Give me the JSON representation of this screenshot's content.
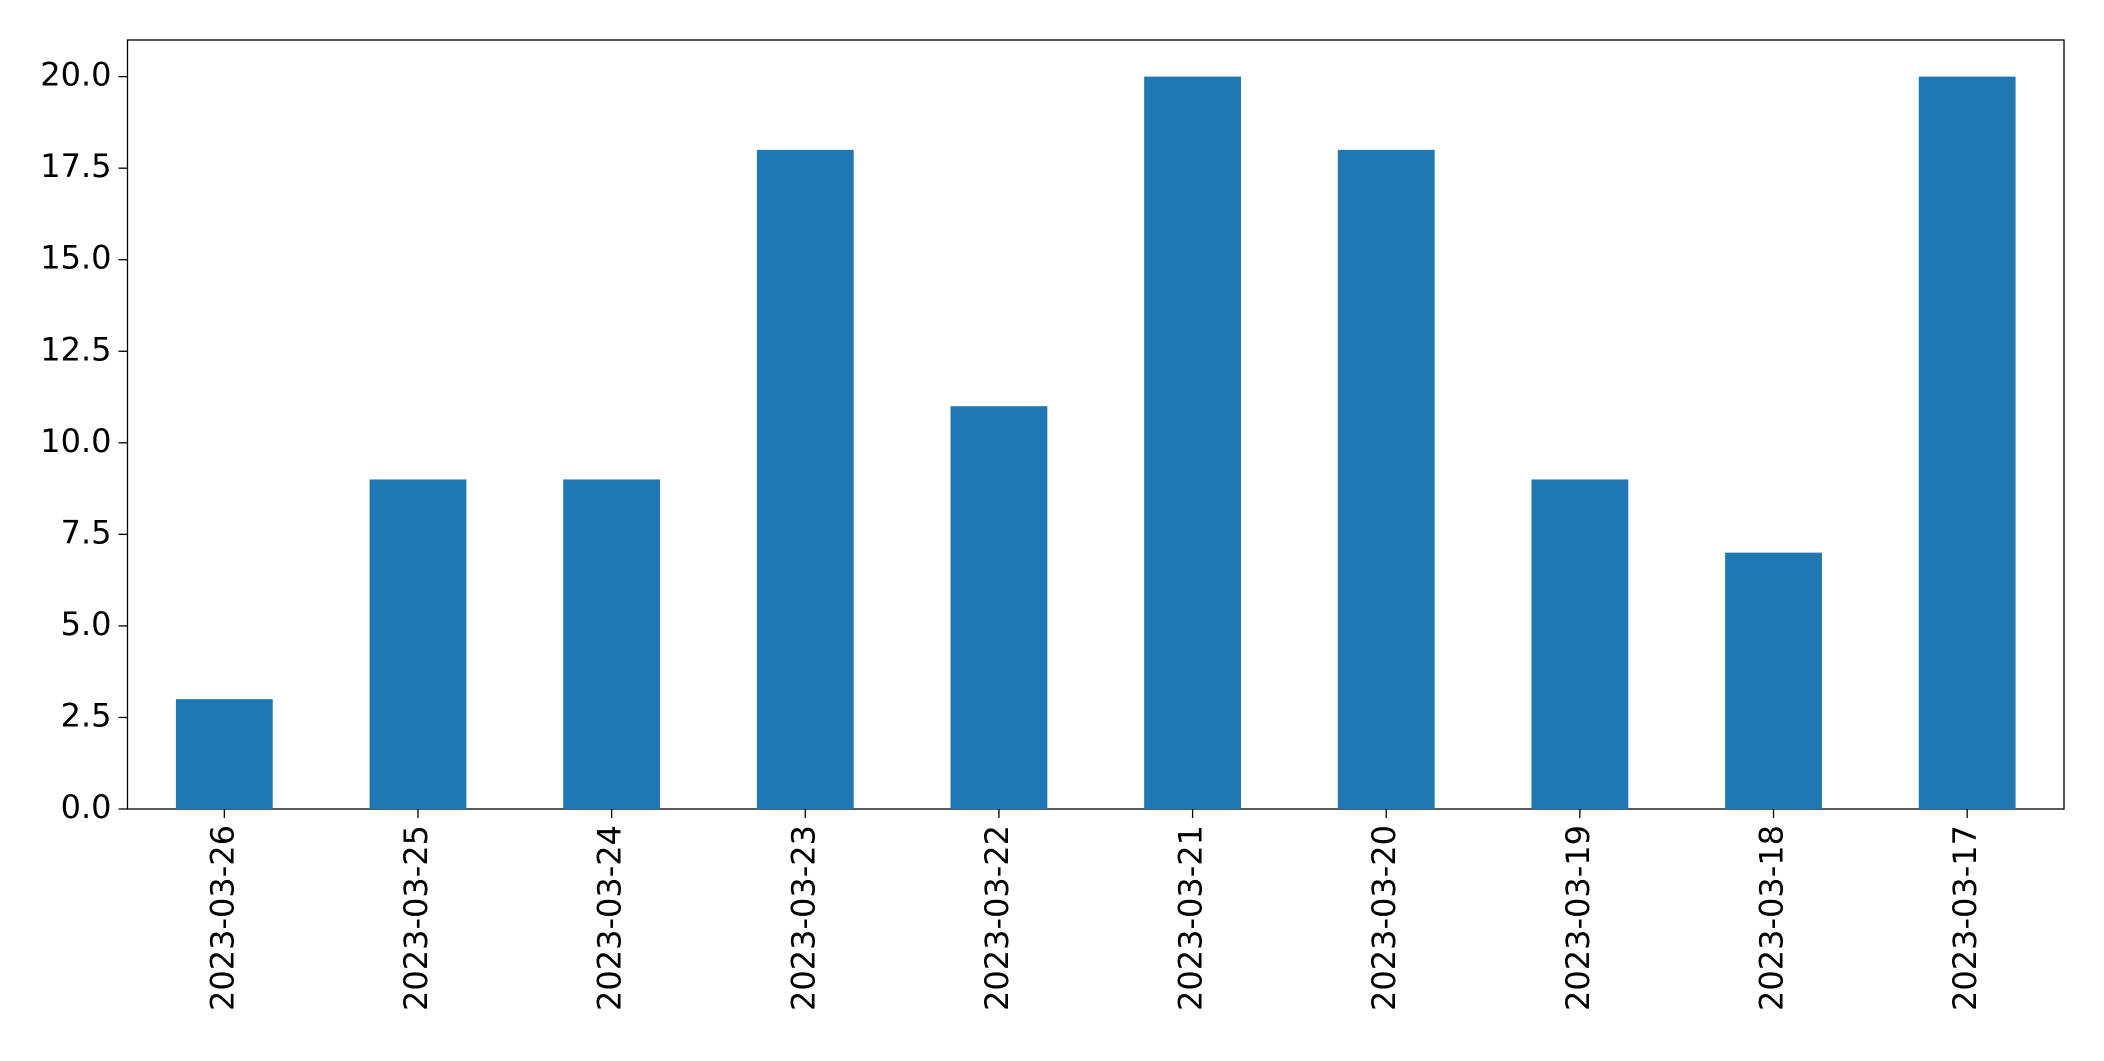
{
  "chart_data": {
    "type": "bar",
    "categories": [
      "2023-03-26",
      "2023-03-25",
      "2023-03-24",
      "2023-03-23",
      "2023-03-22",
      "2023-03-21",
      "2023-03-20",
      "2023-03-19",
      "2023-03-18",
      "2023-03-17"
    ],
    "values": [
      3,
      9,
      9,
      18,
      11,
      20,
      18,
      9,
      7,
      20
    ],
    "color": "#1f77b4",
    "ylim": [
      0,
      21
    ],
    "yticks": [
      {
        "value": 0,
        "label": "0.0"
      },
      2.5,
      {
        "value": 5,
        "label": "5.0"
      },
      7.5,
      {
        "value": 10,
        "label": "10.0"
      },
      12.5,
      {
        "value": 15,
        "label": "15.0"
      },
      17.5,
      {
        "value": 20,
        "label": "20.0"
      }
    ],
    "grid": false
  }
}
